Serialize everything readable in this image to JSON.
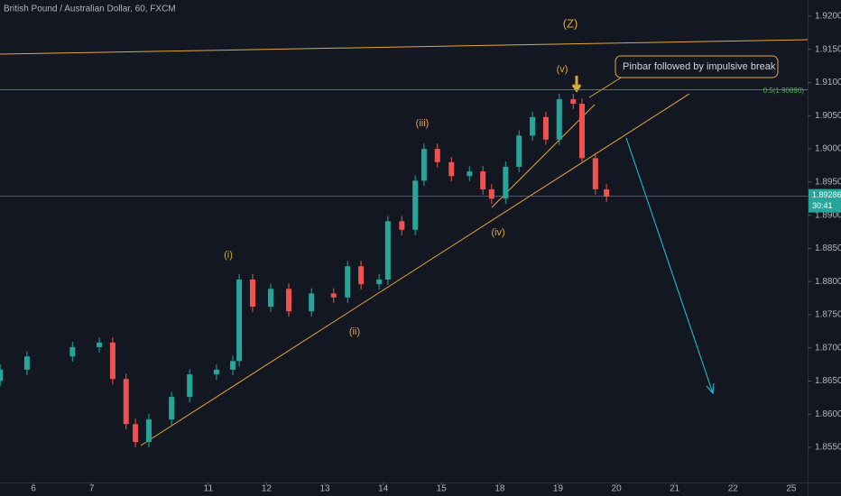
{
  "chart_data": {
    "type": "candlestick",
    "title": "British Pound / Australian Dollar, 60, FXCM",
    "x": [
      -0.57,
      -0.11,
      0.67,
      1.13,
      1.36,
      1.59,
      1.75,
      1.98,
      2.37,
      2.68,
      3.14,
      3.42,
      3.53,
      3.76,
      4.07,
      4.38,
      4.77,
      5.15,
      5.39,
      5.62,
      5.93,
      6.08,
      6.32,
      6.55,
      6.7,
      6.93,
      7.17,
      7.48,
      7.71,
      7.86,
      8.1,
      8.33,
      8.56,
      8.79,
      9.02,
      9.26,
      9.41,
      9.64,
      9.83
    ],
    "open": [
      1.865,
      1.8667,
      1.8687,
      1.8701,
      1.8708,
      1.8653,
      1.8585,
      1.8558,
      1.8592,
      1.8626,
      1.866,
      1.8667,
      1.868,
      1.8803,
      1.8762,
      1.8789,
      1.8755,
      1.8782,
      1.8776,
      1.8823,
      1.8796,
      1.8803,
      1.8891,
      1.8878,
      1.8952,
      1.9,
      1.898,
      1.8959,
      1.8966,
      1.8939,
      1.8925,
      1.8973,
      1.902,
      1.9048,
      1.9014,
      1.9075,
      1.9068,
      1.8986,
      1.8939
    ],
    "high": [
      1.8675,
      1.8695,
      1.8709,
      1.8716,
      1.8716,
      1.8661,
      1.8593,
      1.86,
      1.8634,
      1.8668,
      1.8675,
      1.8688,
      1.8811,
      1.8811,
      1.8797,
      1.8797,
      1.879,
      1.879,
      1.8831,
      1.8831,
      1.8811,
      1.8899,
      1.8899,
      1.896,
      1.9008,
      1.9008,
      1.8988,
      1.8974,
      1.8974,
      1.8947,
      1.8981,
      1.9028,
      1.9056,
      1.9056,
      1.9083,
      1.9083,
      1.9076,
      1.8994,
      1.8947
    ],
    "low": [
      1.8642,
      1.8659,
      1.8679,
      1.8693,
      1.8645,
      1.8577,
      1.855,
      1.855,
      1.8584,
      1.8618,
      1.8652,
      1.8659,
      1.8672,
      1.8754,
      1.8754,
      1.8747,
      1.8747,
      1.8768,
      1.8768,
      1.8788,
      1.8788,
      1.8795,
      1.887,
      1.887,
      1.8944,
      1.8972,
      1.8951,
      1.8951,
      1.8931,
      1.8917,
      1.8917,
      1.8965,
      1.9012,
      1.9006,
      1.9006,
      1.906,
      1.8978,
      1.8931,
      1.892
    ],
    "close": [
      1.8667,
      1.8687,
      1.8701,
      1.8708,
      1.8653,
      1.8585,
      1.8558,
      1.8592,
      1.8626,
      1.866,
      1.8667,
      1.868,
      1.8803,
      1.8762,
      1.8789,
      1.8755,
      1.8782,
      1.8776,
      1.8823,
      1.8796,
      1.8803,
      1.8891,
      1.8878,
      1.8952,
      1.9,
      1.898,
      1.8959,
      1.8966,
      1.8939,
      1.8925,
      1.8973,
      1.902,
      1.9048,
      1.9014,
      1.9075,
      1.9068,
      1.8986,
      1.8939,
      1.8928
    ],
    "up_color": "#26a69a",
    "down_color": "#ef5350",
    "xlim": [
      -0.573,
      13.28
    ],
    "xticks": [
      {
        "value": 0,
        "label": "6"
      },
      {
        "value": 1,
        "label": "7"
      },
      {
        "value": 3,
        "label": "11"
      },
      {
        "value": 4,
        "label": "12"
      },
      {
        "value": 5,
        "label": "13"
      },
      {
        "value": 6,
        "label": "14"
      },
      {
        "value": 7,
        "label": "15"
      },
      {
        "value": 8,
        "label": "18"
      },
      {
        "value": 9,
        "label": "19"
      },
      {
        "value": 10,
        "label": "20"
      },
      {
        "value": 11,
        "label": "21"
      },
      {
        "value": 12,
        "label": "22"
      },
      {
        "value": 13,
        "label": "25"
      }
    ],
    "ylim": [
      1.8497,
      1.92245
    ],
    "yticks": [
      {
        "value": 1.855,
        "label": "1.85500"
      },
      {
        "value": 1.86,
        "label": "1.86000"
      },
      {
        "value": 1.865,
        "label": "1.86500"
      },
      {
        "value": 1.87,
        "label": "1.87000"
      },
      {
        "value": 1.875,
        "label": "1.87500"
      },
      {
        "value": 1.88,
        "label": "1.88000"
      },
      {
        "value": 1.885,
        "label": "1.88500"
      },
      {
        "value": 1.89,
        "label": "1.89000"
      },
      {
        "value": 1.895,
        "label": "1.89500"
      },
      {
        "value": 1.9,
        "label": "1.90000"
      },
      {
        "value": 1.905,
        "label": "1.90500"
      },
      {
        "value": 1.91,
        "label": "1.91000"
      },
      {
        "value": 1.915,
        "label": "1.91500"
      },
      {
        "value": 1.92,
        "label": "1.92000"
      }
    ],
    "last_price": 1.89286,
    "countdown": "30:41",
    "fib_level": {
      "value": 1.9089,
      "label": "0.5(1.90890)"
    },
    "annotations": [
      "(Z)",
      "(v)",
      "(iii)",
      "(i)",
      "(ii)",
      "(iv)",
      "Pinbar followed by impulsive break"
    ]
  }
}
